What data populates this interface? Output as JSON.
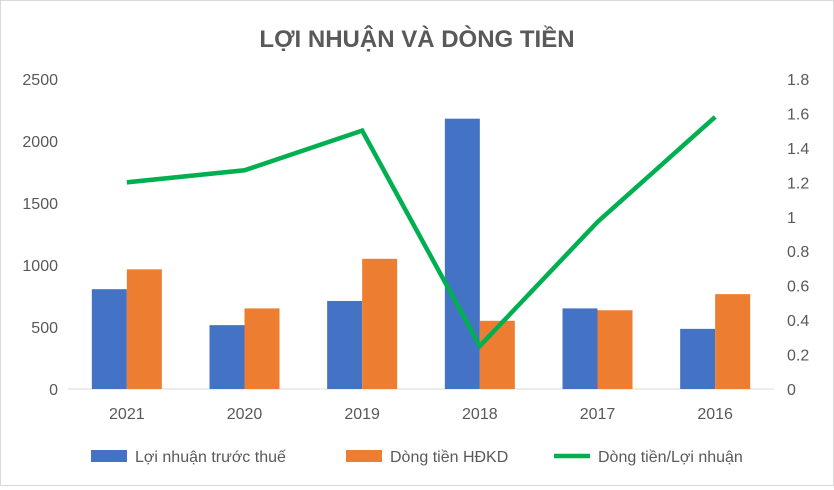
{
  "chart_data": {
    "type": "bar",
    "title": "LỢI NHUẬN VÀ DÒNG TIỀN",
    "categories": [
      "2021",
      "2020",
      "2019",
      "2018",
      "2017",
      "2016"
    ],
    "series": [
      {
        "name": "Lợi nhuận trước thuế",
        "type": "bar",
        "axis": "left",
        "color": "#4472c4",
        "values": [
          805,
          515,
          710,
          2180,
          650,
          485
        ]
      },
      {
        "name": "Dòng tiền HĐKD",
        "type": "bar",
        "axis": "left",
        "color": "#ed7d31",
        "values": [
          965,
          650,
          1050,
          550,
          635,
          765
        ]
      },
      {
        "name": "Dòng tiền/Lợi nhuận",
        "type": "line",
        "axis": "right",
        "color": "#00b050",
        "values": [
          1.2,
          1.27,
          1.5,
          0.25,
          0.97,
          1.58
        ]
      }
    ],
    "ylim": [
      0,
      2500
    ],
    "y_ticks": [
      "0",
      "500",
      "1000",
      "1500",
      "2000",
      "2500"
    ],
    "y2lim": [
      0,
      1.8
    ],
    "y2_ticks": [
      "0",
      "0.2",
      "0.4",
      "0.6",
      "0.8",
      "1",
      "1.2",
      "1.4",
      "1.6",
      "1.8"
    ],
    "grid": false,
    "legend_position": "bottom"
  }
}
